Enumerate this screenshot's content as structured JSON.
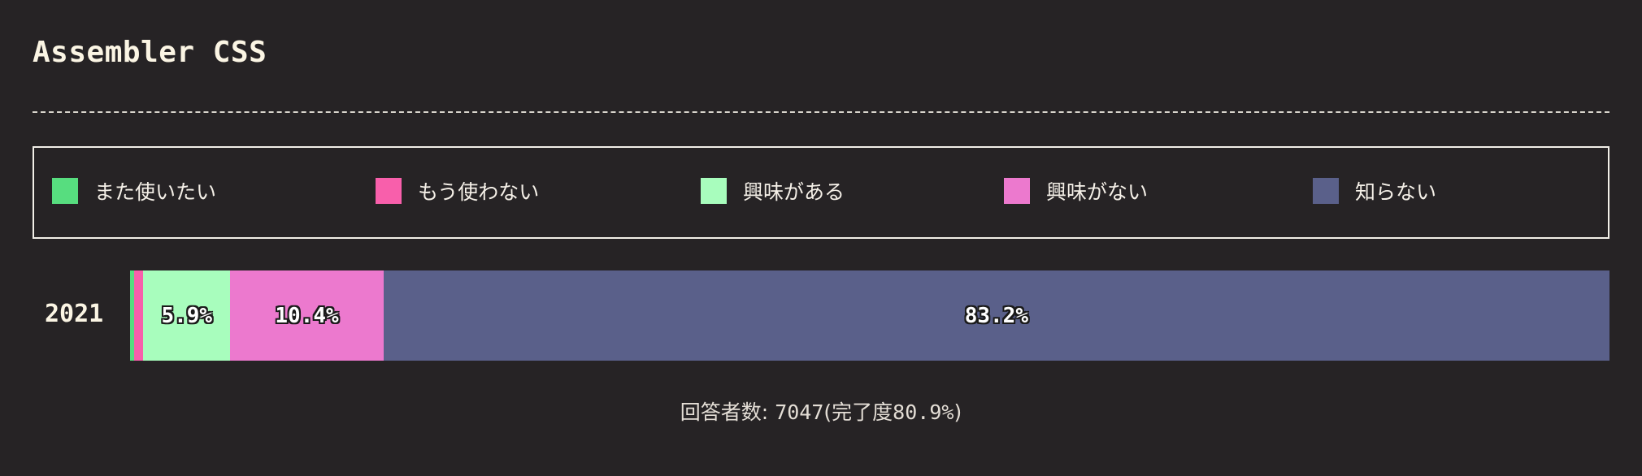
{
  "header": {
    "title": "Assembler CSS"
  },
  "chart_data": {
    "type": "bar",
    "orientation": "horizontal",
    "stacked": true,
    "categories": [
      "2021"
    ],
    "series": [
      {
        "name": "また使いたい",
        "color": "#57dd7f",
        "values": [
          0.3
        ],
        "label": ""
      },
      {
        "name": "もう使わない",
        "color": "#f85fab",
        "values": [
          0.6
        ],
        "label": ""
      },
      {
        "name": "興味がある",
        "color": "#a8fdbd",
        "values": [
          5.9
        ],
        "label": "5.9%"
      },
      {
        "name": "興味がない",
        "color": "#ec79ce",
        "values": [
          10.4
        ],
        "label": "10.4%"
      },
      {
        "name": "知らない",
        "color": "#5a608a",
        "values": [
          83.2
        ],
        "label": "83.2%"
      }
    ],
    "legend_position": "top"
  },
  "footer": {
    "respondents_label": "回答者数:",
    "respondents_count": "7047",
    "completion_open": "(完了度",
    "completion_value": "80.9%",
    "completion_close": ")"
  }
}
